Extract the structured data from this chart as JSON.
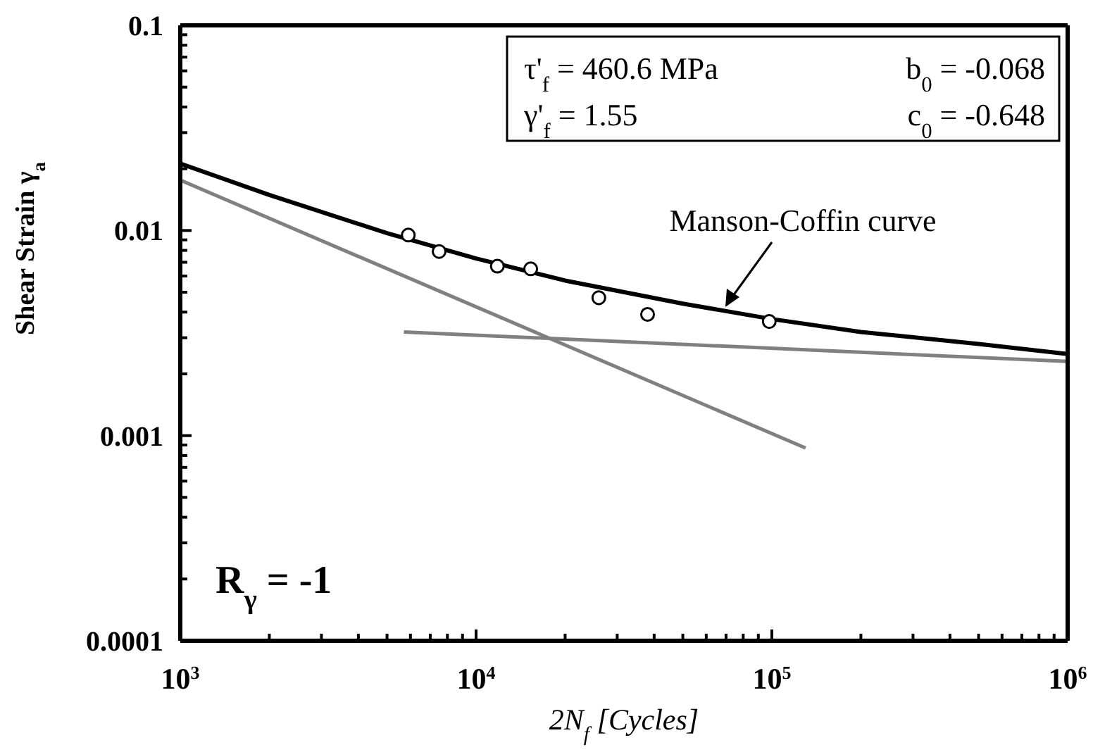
{
  "chart_data": {
    "type": "line",
    "xlabel": "2N$_{f}$ [Cycles]",
    "ylabel": "Shear Strain γ$_{a}$",
    "log": "xy",
    "grid": false,
    "xlim": [
      1000,
      1000000
    ],
    "ylim": [
      0.0001,
      0.1
    ],
    "xticks": [
      {
        "value": 1000,
        "label": "10$^{3}$"
      },
      {
        "value": 2000,
        "label": null
      },
      {
        "value": 3000,
        "label": null
      },
      {
        "value": 4000,
        "label": null
      },
      {
        "value": 5000,
        "label": null
      },
      {
        "value": 6000,
        "label": null
      },
      {
        "value": 7000,
        "label": null
      },
      {
        "value": 8000,
        "label": null
      },
      {
        "value": 9000,
        "label": null
      },
      {
        "value": 10000,
        "label": "10$^{4}$"
      },
      {
        "value": 20000,
        "label": null
      },
      {
        "value": 30000,
        "label": null
      },
      {
        "value": 40000,
        "label": null
      },
      {
        "value": 50000,
        "label": null
      },
      {
        "value": 60000,
        "label": null
      },
      {
        "value": 70000,
        "label": null
      },
      {
        "value": 80000,
        "label": null
      },
      {
        "value": 90000,
        "label": null
      },
      {
        "value": 100000,
        "label": "10$^{5}$"
      },
      {
        "value": 200000,
        "label": null
      },
      {
        "value": 300000,
        "label": null
      },
      {
        "value": 400000,
        "label": null
      },
      {
        "value": 500000,
        "label": null
      },
      {
        "value": 600000,
        "label": null
      },
      {
        "value": 700000,
        "label": null
      },
      {
        "value": 800000,
        "label": null
      },
      {
        "value": 900000,
        "label": null
      },
      {
        "value": 1000000,
        "label": "10$^{6}$"
      }
    ],
    "yticks": [
      0.0001,
      {
        "value": 0.0002,
        "label": null
      },
      {
        "value": 0.0003,
        "label": null
      },
      {
        "value": 0.0004,
        "label": null
      },
      {
        "value": 0.0005,
        "label": null
      },
      {
        "value": 0.0006,
        "label": null
      },
      {
        "value": 0.0007,
        "label": null
      },
      {
        "value": 0.0008,
        "label": null
      },
      {
        "value": 0.0009,
        "label": null
      },
      0.001,
      {
        "value": 0.002,
        "label": null
      },
      {
        "value": 0.003,
        "label": null
      },
      {
        "value": 0.004,
        "label": null
      },
      {
        "value": 0.005,
        "label": null
      },
      {
        "value": 0.006,
        "label": null
      },
      {
        "value": 0.007,
        "label": null
      },
      {
        "value": 0.008,
        "label": null
      },
      {
        "value": 0.009,
        "label": null
      },
      0.01,
      {
        "value": 0.02,
        "label": null
      },
      {
        "value": 0.03,
        "label": null
      },
      {
        "value": 0.04,
        "label": null
      },
      {
        "value": 0.05,
        "label": null
      },
      {
        "value": 0.06,
        "label": null
      },
      {
        "value": 0.07,
        "label": null
      },
      {
        "value": 0.08,
        "label": null
      },
      {
        "value": 0.09,
        "label": null
      },
      0.1
    ],
    "series": [
      {
        "type": "line",
        "color": "#808080",
        "marker": "none",
        "x": [
          1000,
          130000
        ],
        "values": [
          0.0176,
          0.00087
        ]
      },
      {
        "type": "line",
        "color": "#808080",
        "marker": "none",
        "x": [
          5700,
          1000000
        ],
        "values": [
          0.0032,
          0.0023
        ]
      },
      {
        "type": "line",
        "color": "#000000",
        "marker": "none",
        "x": [
          1000,
          2000,
          5000,
          10000,
          20000,
          50000,
          100000,
          200000,
          500000,
          1000000
        ],
        "values": [
          0.0212,
          0.0149,
          0.0097,
          0.0073,
          0.0057,
          0.0044,
          0.0037,
          0.0032,
          0.0028,
          0.0025
        ]
      },
      {
        "type": "scatter",
        "color": "#000000",
        "marker": "circle",
        "x": [
          5900,
          7500,
          11800,
          15300,
          26000,
          38000,
          98000
        ],
        "values": [
          0.0095,
          0.0079,
          0.0067,
          0.0065,
          0.0047,
          0.0039,
          0.0036
        ]
      }
    ],
    "annotations": [
      "τ'$_{f}$ = 460.6 MPa",
      "b$_{0}$ = -0.068",
      "γ'$_{f}$ = 1.55",
      "c$_{0}$ = -0.648",
      "R$_{γ}$ = -1",
      "Manson-Coffin curve"
    ]
  }
}
